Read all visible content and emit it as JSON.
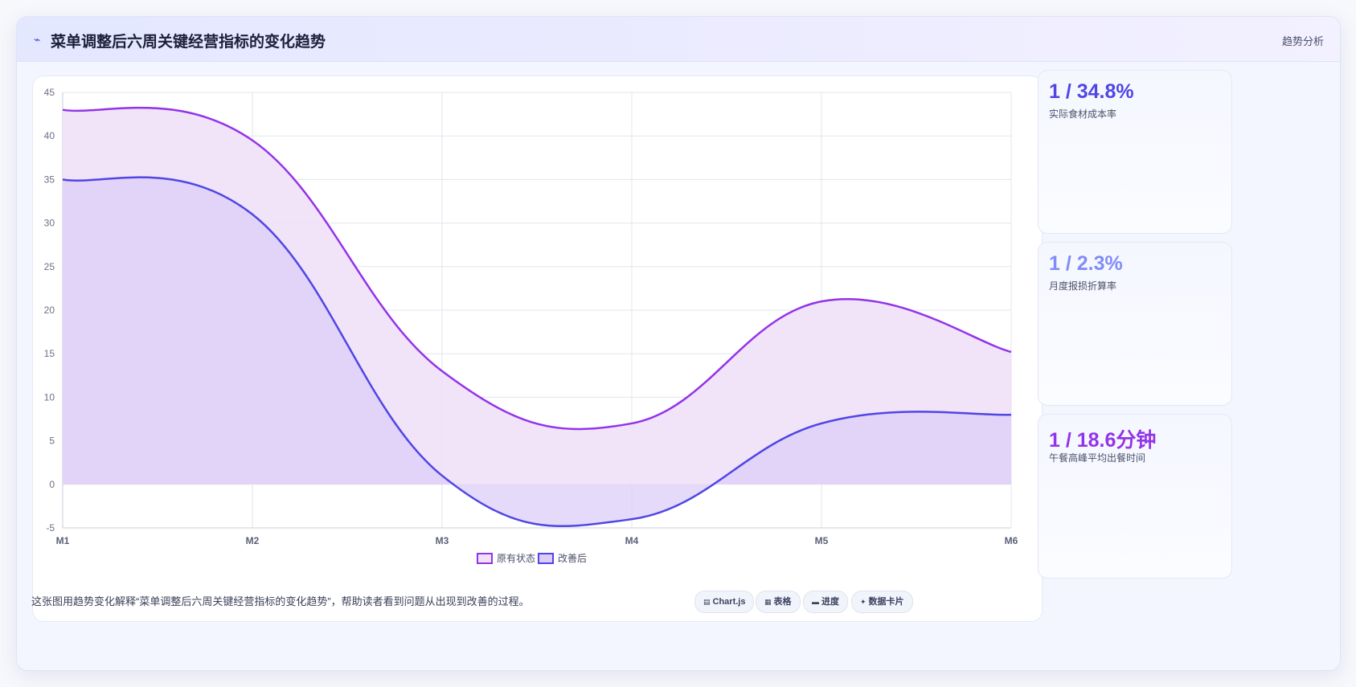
{
  "header": {
    "icon": "trend-line-icon",
    "title": "菜单调整后六周关键经营指标的变化趋势",
    "tag": "趋势分析"
  },
  "chart_data": {
    "type": "area",
    "categories": [
      "M1",
      "M2",
      "M3",
      "M4",
      "M5",
      "M6"
    ],
    "series": [
      {
        "name": "原有状态",
        "values": [
          43,
          39.5,
          13,
          7,
          21,
          15.2
        ],
        "color": "#9333ea",
        "fill": "#efe1f8"
      },
      {
        "name": "改善后",
        "values": [
          35,
          31,
          1,
          -4,
          7,
          8
        ],
        "color": "#4f46e5",
        "fill": "#dccdf7"
      }
    ],
    "ylim": [
      -5,
      45
    ],
    "yticks": [
      -5,
      0,
      5,
      10,
      15,
      20,
      25,
      30,
      35,
      40,
      45
    ],
    "grid": true,
    "legend": "bottom"
  },
  "stats": [
    {
      "value": "1 / 34.8%",
      "label": "实际食材成本率",
      "color": "#4f46e5"
    },
    {
      "value": "1 / 2.3%",
      "label": "月度报损折算率",
      "color": "#818cf8"
    },
    {
      "value": "1 / 18.6分钟",
      "label": "午餐高峰平均出餐时间",
      "color": "#9333ea"
    }
  ],
  "footer": {
    "text": "这张图用趋势变化解释“菜单调整后六周关键经营指标的变化趋势”，帮助读者看到问题从出现到改善的过程。",
    "chips": [
      {
        "icon": "chart-icon",
        "glyph": "▤",
        "label": "Chart.js"
      },
      {
        "icon": "table-icon",
        "glyph": "▦",
        "label": "表格"
      },
      {
        "icon": "progress-icon",
        "glyph": "▬",
        "label": "进度"
      },
      {
        "icon": "sparkle-icon",
        "glyph": "✦",
        "label": "数据卡片"
      }
    ]
  }
}
